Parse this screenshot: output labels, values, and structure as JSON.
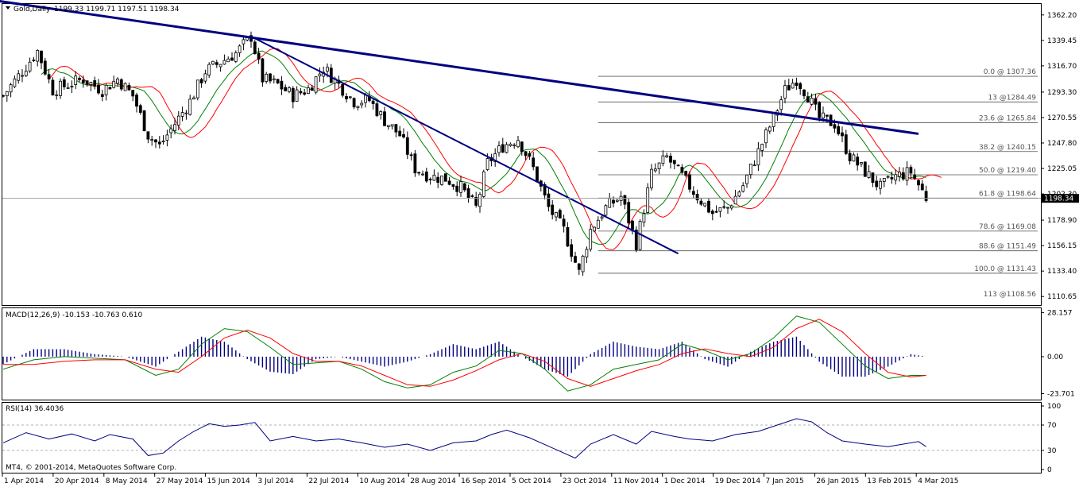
{
  "header": {
    "symbol_title": "Gold,Daily",
    "ohlc": "1199.33 1199.71 1197.51 1198.34",
    "macd_title": "MACD(12,26,9) -10.153 -10.763 0.610",
    "rsi_title": "RSI(14) 36.4036",
    "copyright": "MT4, © 2001-2014, MetaQuotes Software Corp."
  },
  "colors": {
    "candle": "#000000",
    "trendline": "#000080",
    "ma_red": "#ff0000",
    "ma_green": "#008000",
    "fib": "#555555",
    "rsi": "#000080",
    "macd_hist": "#000080",
    "current_price_bg": "#000000"
  },
  "chart_data": [
    {
      "type": "candlestick",
      "title": "Gold,Daily",
      "ylim": [
        1103,
        1372
      ],
      "y_ticks": [
        1362.2,
        1339.45,
        1316.7,
        1293.3,
        1270.55,
        1247.8,
        1225.05,
        1202.3,
        1178.9,
        1156.15,
        1133.4,
        1110.65
      ],
      "x_labels": [
        "1 Apr 2014",
        "20 Apr 2014",
        "8 May 2014",
        "27 May 2014",
        "15 Jun 2014",
        "3 Jul 2014",
        "22 Jul 2014",
        "10 Aug 2014",
        "28 Aug 2014",
        "16 Sep 2014",
        "5 Oct 2014",
        "23 Oct 2014",
        "11 Nov 2014",
        "1 Dec 2014",
        "19 Dec 2014",
        "7 Jan 2015",
        "26 Jan 2015",
        "13 Feb 2015",
        "4 Mar 2015"
      ],
      "current_price": 1198.34,
      "current_price_label": "1198.34",
      "price_path": [
        [
          0,
          1290
        ],
        [
          5,
          1312
        ],
        [
          9,
          1330
        ],
        [
          13,
          1295
        ],
        [
          17,
          1300
        ],
        [
          21,
          1305
        ],
        [
          26,
          1295
        ],
        [
          30,
          1305
        ],
        [
          34,
          1290
        ],
        [
          38,
          1255
        ],
        [
          41,
          1245
        ],
        [
          45,
          1265
        ],
        [
          49,
          1285
        ],
        [
          53,
          1312
        ],
        [
          57,
          1320
        ],
        [
          61,
          1328
        ],
        [
          65,
          1343
        ],
        [
          68,
          1305
        ],
        [
          72,
          1300
        ],
        [
          76,
          1290
        ],
        [
          80,
          1296
        ],
        [
          84,
          1315
        ],
        [
          88,
          1300
        ],
        [
          92,
          1285
        ],
        [
          96,
          1286
        ],
        [
          100,
          1268
        ],
        [
          104,
          1255
        ],
        [
          108,
          1225
        ],
        [
          112,
          1218
        ],
        [
          116,
          1216
        ],
        [
          120,
          1208
        ],
        [
          124,
          1190
        ],
        [
          127,
          1230
        ],
        [
          131,
          1245
        ],
        [
          135,
          1252
        ],
        [
          139,
          1225
        ],
        [
          143,
          1190
        ],
        [
          147,
          1170
        ],
        [
          151,
          1132
        ],
        [
          154,
          1170
        ],
        [
          158,
          1190
        ],
        [
          162,
          1200
        ],
        [
          166,
          1158
        ],
        [
          170,
          1220
        ],
        [
          174,
          1235
        ],
        [
          178,
          1218
        ],
        [
          182,
          1200
        ],
        [
          186,
          1185
        ],
        [
          190,
          1190
        ],
        [
          194,
          1210
        ],
        [
          198,
          1240
        ],
        [
          202,
          1270
        ],
        [
          205,
          1295
        ],
        [
          208,
          1305
        ],
        [
          211,
          1290
        ],
        [
          214,
          1270
        ],
        [
          218,
          1265
        ],
        [
          222,
          1236
        ],
        [
          226,
          1222
        ],
        [
          230,
          1208
        ],
        [
          234,
          1218
        ],
        [
          238,
          1222
        ],
        [
          242,
          1199
        ]
      ],
      "trendline_outer": [
        [
          -4,
          1376
        ],
        [
          240,
          1256
        ]
      ],
      "trendline_inner": [
        [
          65,
          1343
        ],
        [
          177,
          1149
        ]
      ],
      "fibonacci": {
        "levels": [
          {
            "label": "0.0 @ 1307.36",
            "price": 1307.36
          },
          {
            "label": "13 @1284.49",
            "price": 1284.49
          },
          {
            "label": "23.6 @ 1265.84",
            "price": 1265.84
          },
          {
            "label": "38.2 @ 1240.15",
            "price": 1240.15
          },
          {
            "label": "50.0 @ 1219.40",
            "price": 1219.4
          },
          {
            "label": "61.8 @ 1198.64",
            "price": 1198.64
          },
          {
            "label": "78.6 @ 1169.08",
            "price": 1169.08
          },
          {
            "label": "88.6 @ 1151.49",
            "price": 1151.49
          },
          {
            "label": "100.0 @ 1131.43",
            "price": 1131.43
          },
          {
            "label": "113 @1108.56",
            "price": 1108.56
          }
        ]
      }
    },
    {
      "type": "line",
      "title": "MACD(12,26,9) -10.153 -10.763 0.610",
      "ylim": [
        -27.5,
        31.0
      ],
      "y_ticks": [
        28.157,
        0.0,
        -23.701
      ],
      "values": [
        -10.153,
        -10.763,
        0.61
      ],
      "macd_path": [
        [
          0,
          -8
        ],
        [
          8,
          -2
        ],
        [
          16,
          0
        ],
        [
          24,
          -1
        ],
        [
          32,
          -2
        ],
        [
          40,
          -12
        ],
        [
          46,
          -8
        ],
        [
          52,
          8
        ],
        [
          58,
          18
        ],
        [
          64,
          16
        ],
        [
          70,
          6
        ],
        [
          76,
          -5
        ],
        [
          82,
          -4
        ],
        [
          88,
          -3
        ],
        [
          94,
          -8
        ],
        [
          100,
          -16
        ],
        [
          106,
          -20
        ],
        [
          112,
          -18
        ],
        [
          118,
          -10
        ],
        [
          124,
          -6
        ],
        [
          130,
          4
        ],
        [
          136,
          2
        ],
        [
          142,
          -8
        ],
        [
          148,
          -22
        ],
        [
          154,
          -18
        ],
        [
          160,
          -8
        ],
        [
          166,
          -5
        ],
        [
          172,
          -2
        ],
        [
          178,
          8
        ],
        [
          184,
          4
        ],
        [
          190,
          -2
        ],
        [
          196,
          2
        ],
        [
          202,
          12
        ],
        [
          208,
          26
        ],
        [
          214,
          22
        ],
        [
          220,
          8
        ],
        [
          226,
          -6
        ],
        [
          232,
          -14
        ],
        [
          238,
          -12
        ],
        [
          242,
          -12
        ]
      ],
      "signal_path": [
        [
          0,
          -5
        ],
        [
          8,
          -5
        ],
        [
          16,
          -3
        ],
        [
          24,
          -2
        ],
        [
          32,
          -2
        ],
        [
          40,
          -8
        ],
        [
          46,
          -10
        ],
        [
          52,
          0
        ],
        [
          58,
          12
        ],
        [
          64,
          17
        ],
        [
          70,
          12
        ],
        [
          76,
          2
        ],
        [
          82,
          -3
        ],
        [
          88,
          -3
        ],
        [
          94,
          -6
        ],
        [
          100,
          -12
        ],
        [
          106,
          -18
        ],
        [
          112,
          -19
        ],
        [
          118,
          -15
        ],
        [
          124,
          -9
        ],
        [
          130,
          -2
        ],
        [
          136,
          2
        ],
        [
          142,
          -3
        ],
        [
          148,
          -14
        ],
        [
          154,
          -19
        ],
        [
          160,
          -14
        ],
        [
          166,
          -9
        ],
        [
          172,
          -5
        ],
        [
          178,
          2
        ],
        [
          184,
          5
        ],
        [
          190,
          2
        ],
        [
          196,
          0
        ],
        [
          202,
          6
        ],
        [
          208,
          18
        ],
        [
          214,
          24
        ],
        [
          220,
          16
        ],
        [
          226,
          2
        ],
        [
          232,
          -10
        ],
        [
          238,
          -13
        ],
        [
          242,
          -12
        ]
      ]
    },
    {
      "type": "line",
      "title": "RSI(14) 36.4036",
      "ylim": [
        0,
        100
      ],
      "y_ticks": [
        100,
        70,
        30,
        0
      ],
      "value": 36.4036,
      "rsi_path": [
        [
          0,
          42
        ],
        [
          6,
          58
        ],
        [
          12,
          48
        ],
        [
          18,
          56
        ],
        [
          24,
          45
        ],
        [
          28,
          55
        ],
        [
          34,
          48
        ],
        [
          38,
          22
        ],
        [
          42,
          26
        ],
        [
          46,
          45
        ],
        [
          50,
          60
        ],
        [
          54,
          72
        ],
        [
          58,
          68
        ],
        [
          62,
          70
        ],
        [
          66,
          74
        ],
        [
          70,
          45
        ],
        [
          76,
          52
        ],
        [
          82,
          45
        ],
        [
          88,
          48
        ],
        [
          94,
          42
        ],
        [
          100,
          35
        ],
        [
          106,
          40
        ],
        [
          112,
          30
        ],
        [
          118,
          42
        ],
        [
          124,
          45
        ],
        [
          128,
          55
        ],
        [
          132,
          62
        ],
        [
          138,
          50
        ],
        [
          144,
          34
        ],
        [
          150,
          18
        ],
        [
          154,
          40
        ],
        [
          160,
          55
        ],
        [
          166,
          40
        ],
        [
          170,
          60
        ],
        [
          176,
          52
        ],
        [
          180,
          48
        ],
        [
          186,
          45
        ],
        [
          192,
          55
        ],
        [
          198,
          60
        ],
        [
          204,
          72
        ],
        [
          208,
          80
        ],
        [
          212,
          75
        ],
        [
          216,
          58
        ],
        [
          220,
          45
        ],
        [
          226,
          40
        ],
        [
          232,
          36
        ],
        [
          236,
          40
        ],
        [
          240,
          44
        ],
        [
          242,
          36
        ]
      ]
    }
  ]
}
